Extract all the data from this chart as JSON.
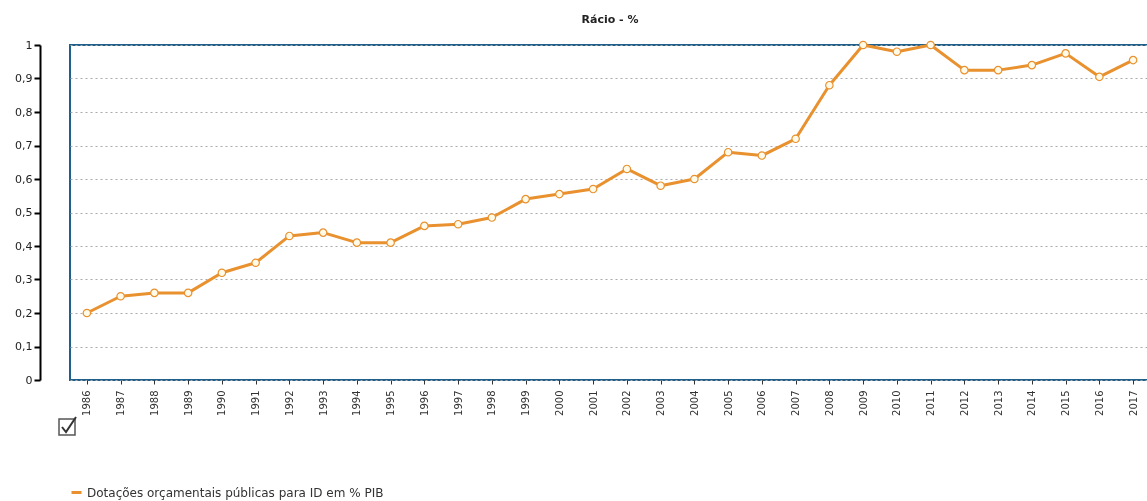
{
  "chart_data": {
    "type": "line",
    "title": "Rácio - %",
    "categories": [
      "1986",
      "1987",
      "1988",
      "1989",
      "1990",
      "1991",
      "1992",
      "1993",
      "1994",
      "1995",
      "1996",
      "1997",
      "1998",
      "1999",
      "2000",
      "2001",
      "2002",
      "2003",
      "2004",
      "2005",
      "2006",
      "2007",
      "2008",
      "2009",
      "2010",
      "2011",
      "2012",
      "2013",
      "2014",
      "2015",
      "2016",
      "2017"
    ],
    "series": [
      {
        "name": "Dotações orçamentais públicas para ID em % PIB",
        "color": "#e8912e",
        "values": [
          0.2,
          0.25,
          0.26,
          0.26,
          0.32,
          0.35,
          0.43,
          0.44,
          0.41,
          0.41,
          0.46,
          0.465,
          0.485,
          0.54,
          0.555,
          0.57,
          0.63,
          0.58,
          0.6,
          0.68,
          0.67,
          0.72,
          0.88,
          1.0,
          0.98,
          1.0,
          0.925,
          0.925,
          0.94,
          0.975,
          0.905,
          0.955
        ]
      }
    ],
    "ylim": [
      0,
      1
    ],
    "yticks": [
      0,
      {
        "value": 0.1,
        "label": "0,1"
      },
      {
        "value": 0.2,
        "label": "0,2"
      },
      {
        "value": 0.3,
        "label": "0,3"
      },
      {
        "value": 0.4,
        "label": "0,4"
      },
      {
        "value": 0.5,
        "label": "0,5"
      },
      {
        "value": 0.6,
        "label": "0,6"
      },
      {
        "value": 0.7,
        "label": "0,7"
      },
      {
        "value": 0.8,
        "label": "0,8"
      },
      {
        "value": 0.9,
        "label": "0,9"
      },
      1
    ],
    "grid": "y",
    "legend": "bottom",
    "marker": "circle",
    "line_style": "solid"
  }
}
